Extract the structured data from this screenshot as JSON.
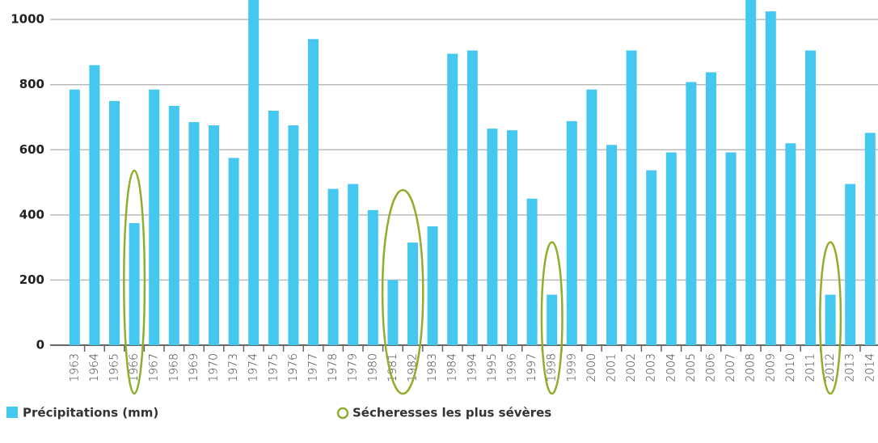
{
  "chart_data": {
    "type": "bar",
    "categories": [
      "1963",
      "1964",
      "1965",
      "1966",
      "1967",
      "1968",
      "1969",
      "1970",
      "1973",
      "1974",
      "1975",
      "1976",
      "1977",
      "1978",
      "1979",
      "1980",
      "1981",
      "1982",
      "1983",
      "1984",
      "1994",
      "1995",
      "1996",
      "1997",
      "1998",
      "1999",
      "2000",
      "2001",
      "2002",
      "2003",
      "2004",
      "2005",
      "2006",
      "2007",
      "2008",
      "2009",
      "2010",
      "2011",
      "2012",
      "2013",
      "2014"
    ],
    "series": [
      {
        "name": "Précipitations (mm)",
        "color": "#45c8f0",
        "values": [
          785,
          860,
          750,
          375,
          785,
          735,
          685,
          675,
          575,
          1100,
          720,
          675,
          940,
          480,
          495,
          415,
          200,
          315,
          365,
          895,
          905,
          665,
          660,
          450,
          155,
          688,
          785,
          615,
          905,
          537,
          592,
          808,
          838,
          592,
          1100,
          1025,
          620,
          905,
          155,
          495,
          652
        ]
      }
    ],
    "highlights": {
      "name": "Sécheresses les plus sévères",
      "color": "#8fae2c",
      "categories": [
        "1966",
        "1981",
        "1982",
        "1998",
        "2012"
      ]
    },
    "ylim": [
      0,
      1060
    ],
    "yticks": [
      0,
      200,
      400,
      600,
      800,
      1000
    ],
    "grid": true
  }
}
